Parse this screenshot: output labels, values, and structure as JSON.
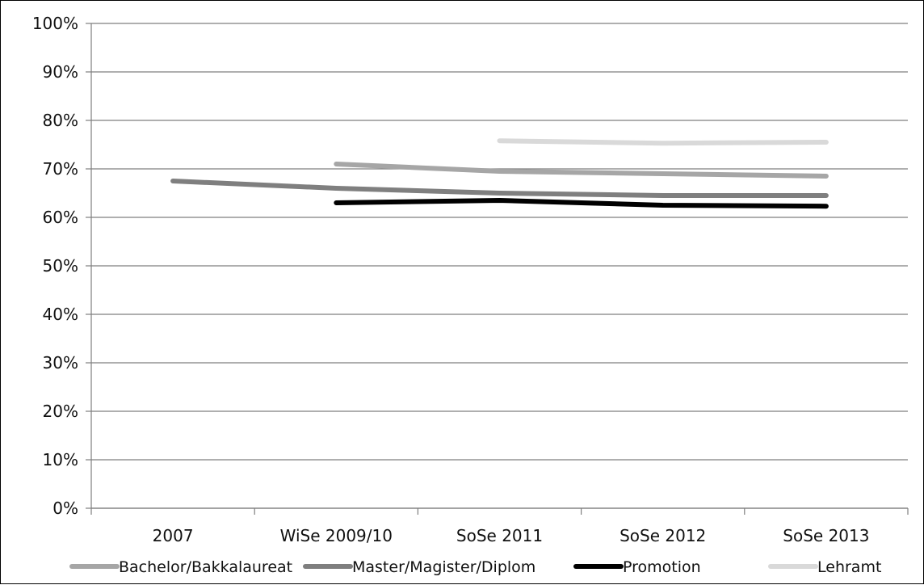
{
  "chart_data": {
    "type": "line",
    "title": "",
    "xlabel": "",
    "ylabel": "",
    "categories": [
      "2007",
      "WiSe 2009/10",
      "SoSe 2011",
      "SoSe 2012",
      "SoSe 2013"
    ],
    "ylim": [
      0,
      100
    ],
    "yticks": [
      "0%",
      "10%",
      "20%",
      "30%",
      "40%",
      "50%",
      "60%",
      "70%",
      "80%",
      "90%",
      "100%"
    ],
    "grid": true,
    "legend_position": "bottom",
    "series": [
      {
        "name": "Bachelor/Bakkalaureat",
        "color": "#a6a6a6",
        "values": [
          null,
          71,
          69.5,
          69,
          68.5
        ]
      },
      {
        "name": "Master/Magister/Diplom",
        "color": "#7f7f7f",
        "values": [
          67.5,
          66,
          65,
          64.5,
          64.5
        ]
      },
      {
        "name": "Promotion",
        "color": "#000000",
        "values": [
          null,
          63,
          63.5,
          62.5,
          62.3
        ]
      },
      {
        "name": "Lehramt",
        "color": "#d9d9d9",
        "values": [
          null,
          null,
          75.8,
          75.3,
          75.5
        ]
      }
    ]
  }
}
